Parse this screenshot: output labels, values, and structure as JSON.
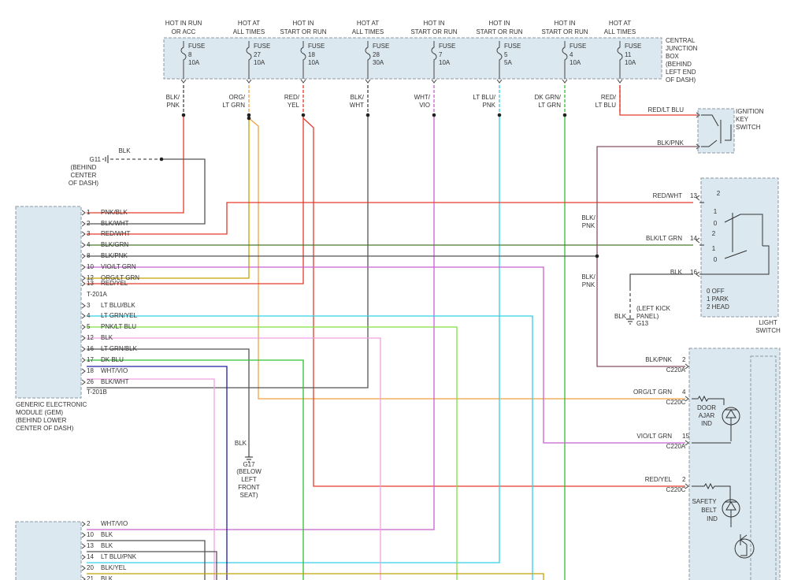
{
  "fuse_box": {
    "label": [
      "CENTRAL",
      "JUNCTION",
      "BOX",
      "(BEHIND",
      "LEFT END",
      "OF DASH)"
    ],
    "fuses": [
      {
        "header": [
          "HOT IN RUN",
          "OR ACC"
        ],
        "name": "FUSE",
        "number": "8",
        "rating": "10A",
        "wire": [
          "BLK/",
          "PNK"
        ]
      },
      {
        "header": [
          "HOT AT",
          "ALL TIMES"
        ],
        "name": "FUSE",
        "number": "27",
        "rating": "10A",
        "wire": [
          "ORG/",
          "LT GRN"
        ]
      },
      {
        "header": [
          "HOT IN",
          "START OR RUN"
        ],
        "name": "FUSE",
        "number": "18",
        "rating": "10A",
        "wire": [
          "RED/",
          "YEL"
        ]
      },
      {
        "header": [
          "HOT AT",
          "ALL TIMES"
        ],
        "name": "FUSE",
        "number": "28",
        "rating": "30A",
        "wire": [
          "BLK/",
          "WHT"
        ]
      },
      {
        "header": [
          "HOT IN",
          "START OR RUN"
        ],
        "name": "FUSE",
        "number": "7",
        "rating": "10A",
        "wire": [
          "WHT/",
          "VIO"
        ]
      },
      {
        "header": [
          "HOT IN",
          "START OR RUN"
        ],
        "name": "FUSE",
        "number": "5",
        "rating": "5A",
        "wire": [
          "LT BLU/",
          "PNK"
        ]
      },
      {
        "header": [
          "HOT IN",
          "START OR RUN"
        ],
        "name": "FUSE",
        "number": "4",
        "rating": "10A",
        "wire": [
          "DK GRN/",
          "LT GRN"
        ]
      },
      {
        "header": [
          "HOT AT",
          "ALL TIMES"
        ],
        "name": "FUSE",
        "number": "11",
        "rating": "10A",
        "wire": [
          "RED/",
          "LT BLU"
        ]
      }
    ]
  },
  "ignition_switch": {
    "label": [
      "IGNITION",
      "KEY",
      "SWITCH"
    ],
    "wires": [
      "RED/LT BLU",
      "BLK/PNK"
    ]
  },
  "ground_g11": {
    "wire": "BLK",
    "name": "G11",
    "location": [
      "(BEHIND",
      "CENTER",
      "OF DASH)"
    ]
  },
  "gem": {
    "label": [
      "GENERIC ELECTRONIC",
      "MODULE (GEM)",
      "(BEHIND LOWER",
      "CENTER OF DASH)"
    ],
    "connectors": [
      {
        "name": "T-201A",
        "pins": [
          [
            "1",
            "PNK/BLK"
          ],
          [
            "2",
            "BLK/WHT"
          ],
          [
            "3",
            "RED/WHT"
          ],
          [
            "4",
            "BLK/GRN"
          ],
          [
            "8",
            "BLK/PNK"
          ],
          [
            "10",
            "VIO/LT GRN"
          ],
          [
            "12",
            "ORG/LT GRN"
          ],
          [
            "13",
            "RED/YEL"
          ]
        ]
      },
      {
        "name": "T-201B",
        "pins": [
          [
            "3",
            "LT BLU/BLK"
          ],
          [
            "4",
            "LT GRN/YEL"
          ],
          [
            "5",
            "PNK/LT BLU"
          ],
          [
            "12",
            "BLK"
          ],
          [
            "16",
            "LT GRN/BLK"
          ],
          [
            "17",
            "DK BLU"
          ],
          [
            "18",
            "WHT/VIO"
          ],
          [
            "26",
            "BLK/WHT"
          ]
        ]
      }
    ]
  },
  "lower_module": {
    "pins": [
      [
        "2",
        "WHT/VIO"
      ],
      [
        "10",
        "BLK"
      ],
      [
        "13",
        "BLK"
      ],
      [
        "14",
        "LT BLU/PNK"
      ],
      [
        "20",
        "BLK/YEL"
      ],
      [
        "21",
        "BLK"
      ]
    ]
  },
  "light_switch": {
    "label": [
      "LIGHT",
      "SWITCH"
    ],
    "wires": [
      {
        "color": "RED/WHT",
        "pin": "13"
      },
      {
        "color": "BLK/LT GRN",
        "pin": "14"
      },
      {
        "color": "BLK",
        "pin": "16"
      }
    ],
    "positions": [
      "2",
      "1",
      "0",
      "2",
      "1",
      "0"
    ],
    "legend": [
      "0 OFF",
      "1 PARK",
      "2 HEAD"
    ]
  },
  "splice_labels": [
    [
      "BLK/",
      "PNK"
    ],
    [
      "BLK/",
      "PNK"
    ]
  ],
  "ground_g13": {
    "location": [
      "(LEFT KICK",
      "PANEL)"
    ],
    "wire": "BLK",
    "name": "G13"
  },
  "ground_g17": {
    "wire": "BLK",
    "name": "G17",
    "location": [
      "(BELOW",
      "LEFT",
      "FRONT",
      "SEAT)"
    ]
  },
  "cluster": {
    "wires": [
      {
        "color": "BLK/PNK",
        "pin": "2",
        "connector": "C220A"
      },
      {
        "color": "ORG/LT GRN",
        "pin": "4",
        "connector": "C220C"
      },
      {
        "color": "VIO/LT GRN",
        "pin": "15",
        "connector": "C220A"
      },
      {
        "color": "RED/YEL",
        "pin": "2",
        "connector": "C220C"
      }
    ],
    "indicators": [
      [
        "DOOR",
        "AJAR",
        "IND"
      ],
      [
        "SAFETY",
        "BELT",
        "IND"
      ]
    ]
  }
}
